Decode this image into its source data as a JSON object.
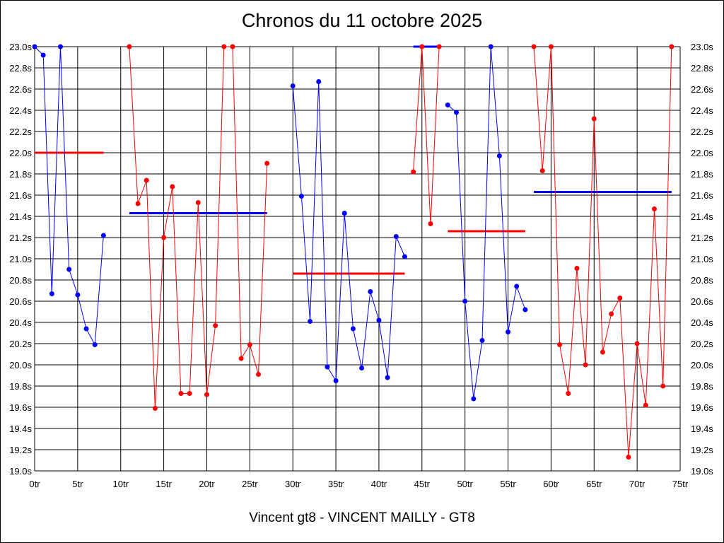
{
  "chart_data": {
    "type": "line",
    "title": "Chronos du 11 octobre 2025",
    "subtitle": "Vincent gt8 - VINCENT MAILLY - GT8",
    "xlim": [
      0,
      75
    ],
    "ylim": [
      19.0,
      23.0
    ],
    "grid": true,
    "x_ticks": [
      "0tr",
      "5tr",
      "10tr",
      "15tr",
      "20tr",
      "25tr",
      "30tr",
      "35tr",
      "40tr",
      "45tr",
      "50tr",
      "55tr",
      "60tr",
      "65tr",
      "70tr",
      "75tr"
    ],
    "y_ticks": [
      "19.0s",
      "19.2s",
      "19.4s",
      "19.6s",
      "19.8s",
      "20.0s",
      "20.2s",
      "20.4s",
      "20.6s",
      "20.8s",
      "21.0s",
      "21.2s",
      "21.4s",
      "21.6s",
      "21.8s",
      "22.0s",
      "22.2s",
      "22.4s",
      "22.6s",
      "22.8s",
      "23.0s"
    ],
    "series": [
      {
        "color": "#0000ff",
        "x": [
          0,
          1,
          2,
          3,
          4,
          5,
          6,
          7,
          8
        ],
        "y": [
          23.0,
          22.92,
          20.67,
          23.0,
          20.9,
          20.66,
          20.34,
          20.19,
          21.22
        ]
      },
      {
        "color": "#ff0000",
        "x": [
          11,
          12,
          13,
          14,
          15,
          16,
          17,
          18,
          19,
          20,
          21,
          22,
          23,
          24,
          25,
          26,
          27
        ],
        "y": [
          23.0,
          21.52,
          21.74,
          19.59,
          21.2,
          21.68,
          19.73,
          19.73,
          21.53,
          19.72,
          20.37,
          23.0,
          23.0,
          20.06,
          20.19,
          19.91,
          21.9
        ]
      },
      {
        "color": "#0000ff",
        "x": [
          30,
          31,
          32,
          33,
          34,
          35,
          36,
          37,
          38,
          39,
          40,
          41,
          42,
          43
        ],
        "y": [
          22.63,
          21.59,
          20.41,
          22.67,
          19.98,
          19.85,
          21.43,
          20.34,
          19.97,
          20.69,
          20.42,
          19.88,
          21.21,
          21.02
        ]
      },
      {
        "color": "#ff0000",
        "x": [
          44,
          45,
          46,
          47
        ],
        "y": [
          21.82,
          23.0,
          21.33,
          23.0
        ]
      },
      {
        "color": "#0000ff",
        "x": [
          48,
          49,
          50,
          51,
          52,
          53,
          54,
          55,
          56,
          57
        ],
        "y": [
          22.45,
          22.38,
          20.6,
          19.68,
          20.23,
          23.0,
          21.97,
          20.31,
          20.74,
          20.52
        ]
      },
      {
        "color": "#ff0000",
        "x": [
          58,
          59,
          60,
          61,
          62,
          63,
          64,
          65,
          66,
          67,
          68,
          69,
          70,
          71,
          72,
          73,
          74
        ],
        "y": [
          23.0,
          21.83,
          23.0,
          20.19,
          19.73,
          20.91,
          20.0,
          22.32,
          20.12,
          20.48,
          20.63,
          19.13,
          20.2,
          19.62,
          21.47,
          19.8,
          23.0
        ]
      }
    ],
    "averages": [
      {
        "color": "#ff0000",
        "x": [
          0,
          8
        ],
        "y": 22.0
      },
      {
        "color": "#0000ff",
        "x": [
          11,
          27
        ],
        "y": 21.43
      },
      {
        "color": "#ff0000",
        "x": [
          30,
          43
        ],
        "y": 20.86
      },
      {
        "color": "#0000ff",
        "x": [
          44,
          47
        ],
        "y": 23.0
      },
      {
        "color": "#ff0000",
        "x": [
          48,
          57
        ],
        "y": 21.26
      },
      {
        "color": "#0000ff",
        "x": [
          58,
          74
        ],
        "y": 21.63
      }
    ]
  }
}
